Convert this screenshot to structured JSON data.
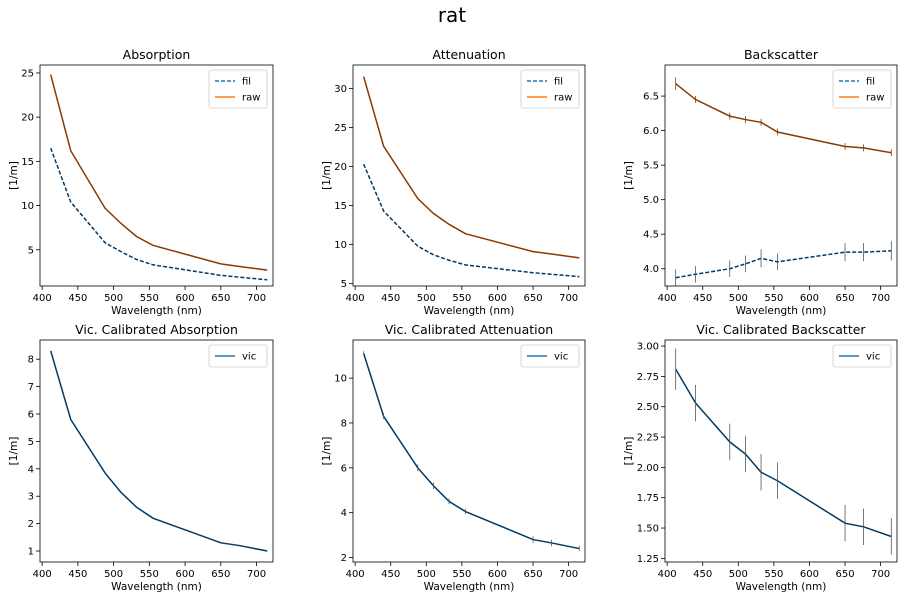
{
  "figure": {
    "title": "rat"
  },
  "colors": {
    "fil": "#1f77b4",
    "raw": "#ff7f0e",
    "vic": "#1f77b4",
    "overlap": "#003a63",
    "raw_drawn": "#8a3a00"
  },
  "chart_data": [
    {
      "type": "line",
      "title": "Absorption",
      "xlabel": "Wavelength (nm)",
      "ylabel": "[1/m]",
      "xlim": [
        397,
        723
      ],
      "ylim": [
        0.9,
        25.9
      ],
      "xticks": [
        400,
        450,
        500,
        550,
        600,
        650,
        700
      ],
      "yticks": [
        5,
        10,
        15,
        20,
        25
      ],
      "legend_position": "top-right",
      "x": [
        412,
        440,
        488,
        510,
        532,
        555,
        650,
        676,
        715
      ],
      "series": [
        {
          "name": "fil",
          "style": "dashed",
          "values": [
            16.5,
            10.4,
            5.8,
            4.8,
            3.9,
            3.3,
            2.1,
            1.9,
            1.6
          ]
        },
        {
          "name": "raw",
          "style": "solid",
          "values": [
            24.8,
            16.2,
            9.7,
            8.0,
            6.5,
            5.5,
            3.4,
            3.1,
            2.7
          ]
        }
      ]
    },
    {
      "type": "line",
      "title": "Attenuation",
      "xlabel": "Wavelength (nm)",
      "ylabel": "[1/m]",
      "xlim": [
        397,
        723
      ],
      "ylim": [
        4.7,
        33.0
      ],
      "xticks": [
        400,
        450,
        500,
        550,
        600,
        650,
        700
      ],
      "yticks": [
        5,
        10,
        15,
        20,
        25,
        30
      ],
      "legend_position": "top-right",
      "x": [
        412,
        440,
        488,
        510,
        532,
        555,
        650,
        676,
        715
      ],
      "series": [
        {
          "name": "fil",
          "style": "dashed",
          "values": [
            20.3,
            14.3,
            9.8,
            8.7,
            8.0,
            7.4,
            6.4,
            6.2,
            5.9
          ]
        },
        {
          "name": "raw",
          "style": "solid",
          "values": [
            31.5,
            22.6,
            15.9,
            14.0,
            12.6,
            11.4,
            9.1,
            8.8,
            8.3
          ]
        }
      ]
    },
    {
      "type": "line",
      "title": "Backscatter",
      "xlabel": "Wavelength (nm)",
      "ylabel": "[1/m]",
      "xlim": [
        397,
        723
      ],
      "ylim": [
        3.75,
        6.95
      ],
      "xticks": [
        400,
        450,
        500,
        550,
        600,
        650,
        700
      ],
      "yticks": [
        4.0,
        4.5,
        5.0,
        5.5,
        6.0,
        6.5
      ],
      "ytick_labels": [
        "4.0",
        "4.5",
        "5.0",
        "5.5",
        "6.0",
        "6.5"
      ],
      "legend_position": "top-right",
      "x": [
        412,
        440,
        488,
        510,
        532,
        555,
        650,
        676,
        715
      ],
      "series": [
        {
          "name": "fil",
          "style": "dashed",
          "values": [
            3.87,
            3.92,
            4.0,
            4.07,
            4.15,
            4.1,
            4.24,
            4.24,
            4.26
          ],
          "errors": [
            0.12,
            0.12,
            0.12,
            0.12,
            0.13,
            0.12,
            0.13,
            0.13,
            0.14
          ]
        },
        {
          "name": "raw",
          "style": "solid",
          "values": [
            6.68,
            6.45,
            6.21,
            6.16,
            6.12,
            5.98,
            5.77,
            5.75,
            5.68
          ],
          "errors": [
            0.09,
            0.05,
            0.05,
            0.05,
            0.05,
            0.05,
            0.05,
            0.05,
            0.05
          ]
        }
      ]
    },
    {
      "type": "line",
      "title": "Vic. Calibrated Absorption",
      "xlabel": "Wavelength (nm)",
      "ylabel": "[1/m]",
      "xlim": [
        397,
        723
      ],
      "ylim": [
        0.6,
        8.7
      ],
      "xticks": [
        400,
        450,
        500,
        550,
        600,
        650,
        700
      ],
      "yticks": [
        1,
        2,
        3,
        4,
        5,
        6,
        7,
        8
      ],
      "legend_position": "top-right",
      "x": [
        412,
        440,
        488,
        510,
        532,
        555,
        650,
        676,
        715
      ],
      "series": [
        {
          "name": "vic",
          "style": "solid",
          "values": [
            8.3,
            5.8,
            3.85,
            3.15,
            2.6,
            2.2,
            1.3,
            1.2,
            1.0
          ]
        }
      ]
    },
    {
      "type": "line",
      "title": "Vic. Calibrated Attenuation",
      "xlabel": "Wavelength (nm)",
      "ylabel": "[1/m]",
      "xlim": [
        397,
        723
      ],
      "ylim": [
        1.8,
        11.7
      ],
      "xticks": [
        400,
        450,
        500,
        550,
        600,
        650,
        700
      ],
      "yticks": [
        2,
        4,
        6,
        8,
        10
      ],
      "legend_position": "top-right",
      "x": [
        412,
        440,
        488,
        510,
        532,
        555,
        650,
        676,
        715
      ],
      "series": [
        {
          "name": "vic",
          "style": "solid",
          "values": [
            11.1,
            8.3,
            6.0,
            5.2,
            4.5,
            4.05,
            2.8,
            2.65,
            2.4
          ],
          "errors": [
            0.1,
            0.12,
            0.15,
            0.15,
            0.12,
            0.12,
            0.15,
            0.15,
            0.12
          ]
        }
      ]
    },
    {
      "type": "line",
      "title": "Vic. Calibrated Backscatter",
      "xlabel": "Wavelength (nm)",
      "ylabel": "[1/m]",
      "xlim": [
        397,
        723
      ],
      "ylim": [
        1.22,
        3.05
      ],
      "xticks": [
        400,
        450,
        500,
        550,
        600,
        650,
        700
      ],
      "yticks": [
        1.25,
        1.5,
        1.75,
        2.0,
        2.25,
        2.5,
        2.75,
        3.0
      ],
      "ytick_labels": [
        "1.25",
        "1.50",
        "1.75",
        "2.00",
        "2.25",
        "2.50",
        "2.75",
        "3.00"
      ],
      "legend_position": "top-right",
      "x": [
        412,
        440,
        488,
        510,
        532,
        555,
        650,
        676,
        715
      ],
      "series": [
        {
          "name": "vic",
          "style": "solid",
          "values": [
            2.81,
            2.53,
            2.21,
            2.11,
            1.96,
            1.89,
            1.54,
            1.51,
            1.43
          ],
          "errors": [
            0.17,
            0.15,
            0.15,
            0.15,
            0.15,
            0.15,
            0.15,
            0.15,
            0.15
          ]
        }
      ]
    }
  ]
}
